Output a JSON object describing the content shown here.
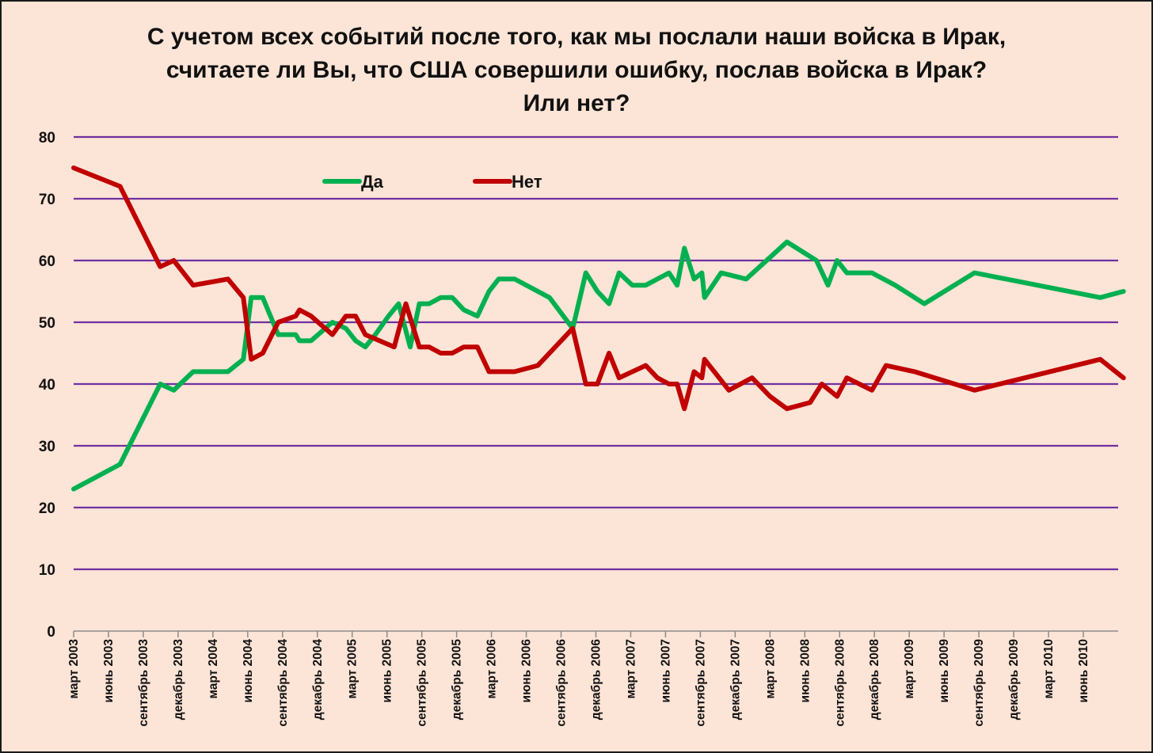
{
  "chart_data": {
    "type": "line",
    "title": [
      "С учетом всех событий после того, как мы послали наши войска в Ирак,",
      "считаете ли Вы, что США совершили ошибку, послав войска в Ирак?",
      "Или нет?"
    ],
    "xlabel": "",
    "ylabel": "",
    "ylim": [
      0,
      80
    ],
    "yticks": [
      0,
      10,
      20,
      30,
      40,
      50,
      60,
      70,
      80
    ],
    "grid": true,
    "legend_position": "top-center",
    "xlim": [
      "2003-03",
      "2010-09"
    ],
    "x_ticks": [
      {
        "date": "2003-03",
        "label": "март 2003"
      },
      {
        "date": "2003-06",
        "label": "июнь 2003"
      },
      {
        "date": "2003-09",
        "label": "сентябрь 2003"
      },
      {
        "date": "2003-12",
        "label": "декабрь 2003"
      },
      {
        "date": "2004-03",
        "label": "март 2004"
      },
      {
        "date": "2004-06",
        "label": "июнь 2004"
      },
      {
        "date": "2004-09",
        "label": "сентябрь 2004"
      },
      {
        "date": "2004-12",
        "label": "декабрь 2004"
      },
      {
        "date": "2005-03",
        "label": "март 2005"
      },
      {
        "date": "2005-06",
        "label": "июнь 2005"
      },
      {
        "date": "2005-09",
        "label": "сентябрь 2005"
      },
      {
        "date": "2005-12",
        "label": "декабрь 2005"
      },
      {
        "date": "2006-03",
        "label": "март 2006"
      },
      {
        "date": "2006-06",
        "label": "июнь 2006"
      },
      {
        "date": "2006-09",
        "label": "сентябрь 2006"
      },
      {
        "date": "2006-12",
        "label": "декабрь 2006"
      },
      {
        "date": "2007-03",
        "label": "март 2007"
      },
      {
        "date": "2007-06",
        "label": "июнь 2007"
      },
      {
        "date": "2007-09",
        "label": "сентябрь 2007"
      },
      {
        "date": "2007-12",
        "label": "декабрь 2007"
      },
      {
        "date": "2008-03",
        "label": "март 2008"
      },
      {
        "date": "2008-06",
        "label": "июнь 2008"
      },
      {
        "date": "2008-09",
        "label": "сентябрь 2008"
      },
      {
        "date": "2008-12",
        "label": "декабрь 2008"
      },
      {
        "date": "2009-03",
        "label": "март 2009"
      },
      {
        "date": "2009-06",
        "label": "июнь 2009"
      },
      {
        "date": "2009-09",
        "label": "сентябрь 2009"
      },
      {
        "date": "2009-12",
        "label": "декабрь 2009"
      },
      {
        "date": "2010-03",
        "label": "март 2010"
      },
      {
        "date": "2010-06",
        "label": "июнь 2010"
      }
    ],
    "series": [
      {
        "name": "Да",
        "color": "#00b050",
        "points": [
          [
            "2003-03-01",
            23
          ],
          [
            "2003-07-01",
            27
          ],
          [
            "2003-10-15",
            40
          ],
          [
            "2003-11-20",
            39
          ],
          [
            "2004-01-10",
            42
          ],
          [
            "2004-04-10",
            42
          ],
          [
            "2004-05-20",
            44
          ],
          [
            "2004-06-10",
            54
          ],
          [
            "2004-07-10",
            54
          ],
          [
            "2004-08-20",
            48
          ],
          [
            "2004-10-05",
            48
          ],
          [
            "2004-10-15",
            47
          ],
          [
            "2004-11-15",
            47
          ],
          [
            "2005-01-10",
            50
          ],
          [
            "2005-02-15",
            49
          ],
          [
            "2005-03-10",
            47
          ],
          [
            "2005-04-05",
            46
          ],
          [
            "2005-05-01",
            48
          ],
          [
            "2005-06-05",
            51
          ],
          [
            "2005-07-01",
            53
          ],
          [
            "2005-08-01",
            46
          ],
          [
            "2005-08-25",
            53
          ],
          [
            "2005-09-20",
            53
          ],
          [
            "2005-10-20",
            54
          ],
          [
            "2005-11-20",
            54
          ],
          [
            "2005-12-20",
            52
          ],
          [
            "2006-01-25",
            51
          ],
          [
            "2006-02-25",
            55
          ],
          [
            "2006-03-20",
            57
          ],
          [
            "2006-05-01",
            57
          ],
          [
            "2006-08-01",
            54
          ],
          [
            "2006-10-01",
            49
          ],
          [
            "2006-11-05",
            58
          ],
          [
            "2006-12-05",
            55
          ],
          [
            "2007-01-05",
            53
          ],
          [
            "2007-02-01",
            58
          ],
          [
            "2007-03-05",
            56
          ],
          [
            "2007-04-10",
            56
          ],
          [
            "2007-06-10",
            58
          ],
          [
            "2007-07-01",
            56
          ],
          [
            "2007-07-20",
            62
          ],
          [
            "2007-08-15",
            57
          ],
          [
            "2007-09-05",
            58
          ],
          [
            "2007-09-12",
            54
          ],
          [
            "2007-10-25",
            58
          ],
          [
            "2007-12-30",
            57
          ],
          [
            "2008-04-15",
            63
          ],
          [
            "2008-07-01",
            60
          ],
          [
            "2008-08-01",
            56
          ],
          [
            "2008-08-25",
            60
          ],
          [
            "2008-09-20",
            58
          ],
          [
            "2008-11-25",
            58
          ],
          [
            "2009-01-25",
            56
          ],
          [
            "2009-04-10",
            53
          ],
          [
            "2009-08-20",
            58
          ],
          [
            "2010-07-15",
            54
          ],
          [
            "2010-09-15",
            55
          ]
        ]
      },
      {
        "name": "Нет",
        "color": "#c00000",
        "points": [
          [
            "2003-03-01",
            75
          ],
          [
            "2003-07-01",
            72
          ],
          [
            "2003-10-15",
            59
          ],
          [
            "2003-11-20",
            60
          ],
          [
            "2004-01-10",
            56
          ],
          [
            "2004-04-10",
            57
          ],
          [
            "2004-05-20",
            54
          ],
          [
            "2004-06-10",
            44
          ],
          [
            "2004-07-10",
            45
          ],
          [
            "2004-08-20",
            50
          ],
          [
            "2004-10-05",
            51
          ],
          [
            "2004-10-15",
            52
          ],
          [
            "2004-11-15",
            51
          ],
          [
            "2005-01-10",
            48
          ],
          [
            "2005-02-15",
            51
          ],
          [
            "2005-03-10",
            51
          ],
          [
            "2005-04-05",
            48
          ],
          [
            "2005-06-20",
            46
          ],
          [
            "2005-07-20",
            53
          ],
          [
            "2005-08-25",
            46
          ],
          [
            "2005-09-20",
            46
          ],
          [
            "2005-10-20",
            45
          ],
          [
            "2005-11-20",
            45
          ],
          [
            "2005-12-20",
            46
          ],
          [
            "2006-01-25",
            46
          ],
          [
            "2006-02-25",
            42
          ],
          [
            "2006-05-01",
            42
          ],
          [
            "2006-07-01",
            43
          ],
          [
            "2006-10-01",
            49
          ],
          [
            "2006-11-05",
            40
          ],
          [
            "2006-12-05",
            40
          ],
          [
            "2007-01-05",
            45
          ],
          [
            "2007-02-01",
            41
          ],
          [
            "2007-04-10",
            43
          ],
          [
            "2007-05-10",
            41
          ],
          [
            "2007-06-10",
            40
          ],
          [
            "2007-07-01",
            40
          ],
          [
            "2007-07-20",
            36
          ],
          [
            "2007-08-15",
            42
          ],
          [
            "2007-09-05",
            41
          ],
          [
            "2007-09-12",
            44
          ],
          [
            "2007-11-15",
            39
          ],
          [
            "2008-01-15",
            41
          ],
          [
            "2008-03-01",
            38
          ],
          [
            "2008-04-15",
            36
          ],
          [
            "2008-06-15",
            37
          ],
          [
            "2008-07-15",
            40
          ],
          [
            "2008-08-25",
            38
          ],
          [
            "2008-09-20",
            41
          ],
          [
            "2008-11-25",
            39
          ],
          [
            "2009-01-01",
            43
          ],
          [
            "2009-03-15",
            42
          ],
          [
            "2009-08-20",
            39
          ],
          [
            "2010-07-15",
            44
          ],
          [
            "2010-09-15",
            41
          ]
        ]
      }
    ]
  },
  "colors": {
    "background": "#fce4d6",
    "gridline": "#7030a0",
    "da_line": "#00b050",
    "net_line": "#c00000"
  }
}
